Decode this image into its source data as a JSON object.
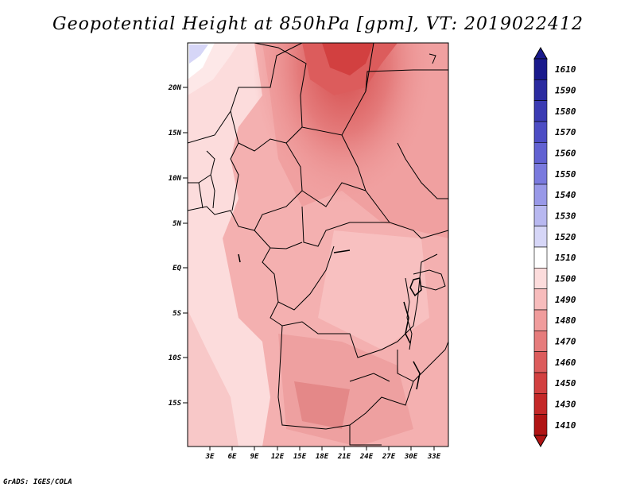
{
  "title": "Geopotential Height at 850hPa [gpm], VT: 2019022412",
  "credit": "GrADS: IGES/COLA",
  "map": {
    "lat_labels": [
      "20N",
      "15N",
      "10N",
      "5N",
      "EQ",
      "5S",
      "10S",
      "15S"
    ],
    "lon_labels": [
      "3E",
      "6E",
      "9E",
      "12E",
      "15E",
      "18E",
      "21E",
      "24E",
      "27E",
      "30E",
      "33E"
    ],
    "lon_range": [
      0,
      35
    ],
    "lat_range": [
      -20,
      25
    ]
  },
  "legend": {
    "levels": [
      "1610",
      "1590",
      "1580",
      "1570",
      "1560",
      "1550",
      "1540",
      "1530",
      "1520",
      "1510",
      "1500",
      "1490",
      "1480",
      "1470",
      "1460",
      "1450",
      "1430",
      "1410"
    ],
    "colors": [
      "#1a1a8c",
      "#2b2ba0",
      "#3b3bb3",
      "#4d4dc4",
      "#6262d2",
      "#7a7ade",
      "#9999e8",
      "#b8b8f0",
      "#d6d6f7",
      "#ffffff",
      "#fcdcdc",
      "#f7bcbc",
      "#f09c9c",
      "#e67c7c",
      "#dc5c5c",
      "#d24040",
      "#c42828",
      "#b01414"
    ]
  }
}
